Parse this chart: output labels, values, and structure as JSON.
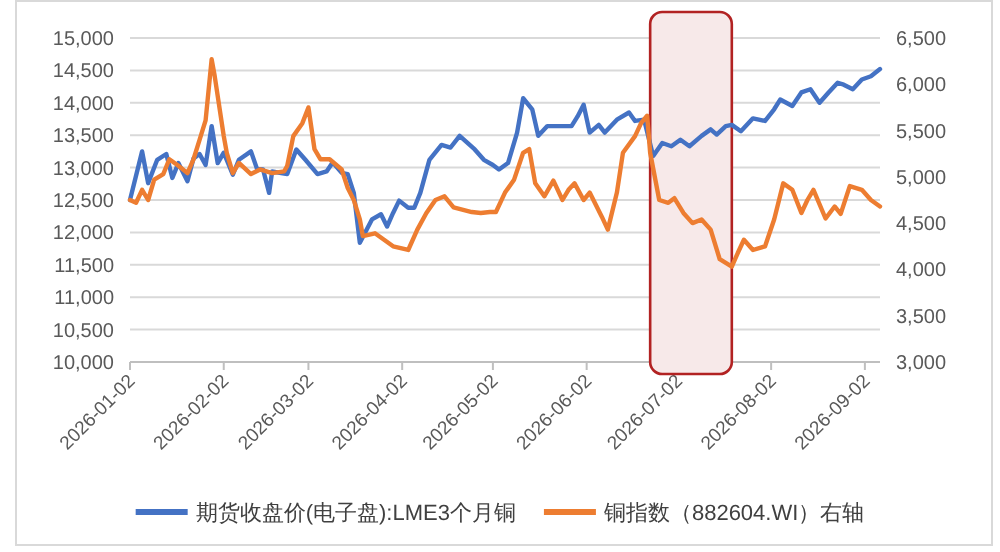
{
  "chart_data": {
    "type": "line",
    "xlim": [
      "2026-01-02",
      "2026-09-07"
    ],
    "xticks": [
      "2026-01-02",
      "2026-02-02",
      "2026-03-02",
      "2026-04-02",
      "2026-05-02",
      "2026-06-02",
      "2026-07-02",
      "2026-08-02",
      "2026-09-02"
    ],
    "ylim": [
      10000,
      15000
    ],
    "yticks": [
      {
        "value": 10000,
        "label": "10,000"
      },
      {
        "value": 10500,
        "label": "10,500"
      },
      {
        "value": 11000,
        "label": "11,000"
      },
      {
        "value": 11500,
        "label": "11,500"
      },
      {
        "value": 12000,
        "label": "12,000"
      },
      {
        "value": 12500,
        "label": "12,500"
      },
      {
        "value": 13000,
        "label": "13,000"
      },
      {
        "value": 13500,
        "label": "13,500"
      },
      {
        "value": 14000,
        "label": "14,000"
      },
      {
        "value": 14500,
        "label": "14,500"
      },
      {
        "value": 15000,
        "label": "15,000"
      }
    ],
    "y2lim": [
      3000,
      6500
    ],
    "y2ticks": [
      {
        "value": 3000,
        "label": "3,000"
      },
      {
        "value": 3500,
        "label": "3,500"
      },
      {
        "value": 4000,
        "label": "4,000"
      },
      {
        "value": 4500,
        "label": "4,500"
      },
      {
        "value": 5000,
        "label": "5,000"
      },
      {
        "value": 5500,
        "label": "5,500"
      },
      {
        "value": 6000,
        "label": "6,000"
      },
      {
        "value": 6500,
        "label": "6,500"
      }
    ],
    "grid": "y",
    "bands": [
      {
        "axis": "x",
        "from": "2026-06-23",
        "to": "2026-07-20",
        "color": "#b22222"
      }
    ],
    "legend": "bottom",
    "series": [
      {
        "name": "期货收盘价(电子盘):LME3个月铜",
        "color": "#4472c4",
        "x": [
          "2026-01-02",
          "2026-01-06",
          "2026-01-08",
          "2026-01-11",
          "2026-01-14",
          "2026-01-16",
          "2026-01-18",
          "2026-01-21",
          "2026-01-23",
          "2026-01-25",
          "2026-01-27",
          "2026-01-29",
          "2026-01-31",
          "2026-02-02",
          "2026-02-05",
          "2026-02-07",
          "2026-02-11",
          "2026-02-13",
          "2026-02-15",
          "2026-02-17",
          "2026-02-18",
          "2026-02-23",
          "2026-02-26",
          "2026-03-01",
          "2026-03-05",
          "2026-03-08",
          "2026-03-10",
          "2026-03-13",
          "2026-03-15",
          "2026-03-17",
          "2026-03-19",
          "2026-03-23",
          "2026-03-26",
          "2026-03-28",
          "2026-03-30",
          "2026-04-01",
          "2026-04-04",
          "2026-04-06",
          "2026-04-08",
          "2026-04-11",
          "2026-04-15",
          "2026-04-18",
          "2026-04-21",
          "2026-04-26",
          "2026-04-29",
          "2026-05-02",
          "2026-05-04",
          "2026-05-07",
          "2026-05-10",
          "2026-05-12",
          "2026-05-15",
          "2026-05-17",
          "2026-05-20",
          "2026-05-23",
          "2026-05-28",
          "2026-05-30",
          "2026-06-01",
          "2026-06-03",
          "2026-06-06",
          "2026-06-08",
          "2026-06-12",
          "2026-06-16",
          "2026-06-18",
          "2026-06-21",
          "2026-06-24",
          "2026-06-27",
          "2026-06-30",
          "2026-07-03",
          "2026-07-06",
          "2026-07-10",
          "2026-07-13",
          "2026-07-15",
          "2026-07-18",
          "2026-07-20",
          "2026-07-23",
          "2026-07-27",
          "2026-07-31",
          "2026-08-03",
          "2026-08-05",
          "2026-08-09",
          "2026-08-12",
          "2026-08-15",
          "2026-08-18",
          "2026-08-21",
          "2026-08-24",
          "2026-08-26",
          "2026-08-29",
          "2026-09-01",
          "2026-09-04",
          "2026-09-07"
        ],
        "values": [
          12500,
          13250,
          12760,
          13120,
          13210,
          12840,
          13070,
          12790,
          13140,
          13210,
          13040,
          13640,
          13070,
          13230,
          12890,
          13120,
          13250,
          12980,
          12970,
          12610,
          12940,
          12900,
          13280,
          13120,
          12900,
          12940,
          13080,
          12920,
          12900,
          12610,
          11840,
          12200,
          12280,
          12090,
          12300,
          12490,
          12380,
          12380,
          12610,
          13120,
          13350,
          13310,
          13490,
          13280,
          13120,
          13040,
          12970,
          13070,
          13540,
          14070,
          13900,
          13490,
          13640,
          13640,
          13640,
          13790,
          13970,
          13540,
          13660,
          13540,
          13740,
          13850,
          13720,
          13740,
          13180,
          13380,
          13330,
          13430,
          13330,
          13490,
          13590,
          13510,
          13640,
          13660,
          13560,
          13760,
          13720,
          13900,
          14050,
          13950,
          14160,
          14210,
          14000,
          14160,
          14310,
          14280,
          14210,
          14360,
          14410,
          14520
        ]
      },
      {
        "name": "铜指数（882604.WI）右轴",
        "color": "#ed7d31",
        "axis": "y2",
        "x": [
          "2026-01-02",
          "2026-01-04",
          "2026-01-06",
          "2026-01-08",
          "2026-01-10",
          "2026-01-13",
          "2026-01-15",
          "2026-01-18",
          "2026-01-21",
          "2026-01-23",
          "2026-01-25",
          "2026-01-27",
          "2026-01-29",
          "2026-01-30",
          "2026-02-02",
          "2026-02-03",
          "2026-02-05",
          "2026-02-07",
          "2026-02-11",
          "2026-02-14",
          "2026-02-18",
          "2026-02-22",
          "2026-02-23",
          "2026-02-25",
          "2026-02-28",
          "2026-03-02",
          "2026-03-04",
          "2026-03-06",
          "2026-03-09",
          "2026-03-13",
          "2026-03-15",
          "2026-03-17",
          "2026-03-19",
          "2026-03-20",
          "2026-03-24",
          "2026-03-27",
          "2026-03-30",
          "2026-04-04",
          "2026-04-07",
          "2026-04-10",
          "2026-04-13",
          "2026-04-16",
          "2026-04-19",
          "2026-04-25",
          "2026-04-28",
          "2026-05-01",
          "2026-05-03",
          "2026-05-06",
          "2026-05-09",
          "2026-05-12",
          "2026-05-14",
          "2026-05-16",
          "2026-05-19",
          "2026-05-22",
          "2026-05-25",
          "2026-05-27",
          "2026-05-29",
          "2026-06-01",
          "2026-06-03",
          "2026-06-07",
          "2026-06-09",
          "2026-06-12",
          "2026-06-14",
          "2026-06-18",
          "2026-06-20",
          "2026-06-22",
          "2026-06-23",
          "2026-06-26",
          "2026-06-29",
          "2026-07-01",
          "2026-07-04",
          "2026-07-07",
          "2026-07-10",
          "2026-07-13",
          "2026-07-16",
          "2026-07-20",
          "2026-07-22",
          "2026-07-24",
          "2026-07-27",
          "2026-07-31",
          "2026-08-03",
          "2026-08-06",
          "2026-08-09",
          "2026-08-12",
          "2026-08-14",
          "2026-08-16",
          "2026-08-20",
          "2026-08-23",
          "2026-08-25",
          "2026-08-28",
          "2026-09-01",
          "2026-09-04",
          "2026-09-07"
        ],
        "values": [
          4750,
          4720,
          4860,
          4750,
          4970,
          5030,
          5190,
          5120,
          5040,
          5190,
          5400,
          5610,
          6270,
          6090,
          5440,
          5260,
          5040,
          5150,
          5030,
          5080,
          5040,
          5060,
          5120,
          5440,
          5580,
          5750,
          5300,
          5190,
          5190,
          5080,
          4880,
          4750,
          4540,
          4360,
          4390,
          4320,
          4250,
          4210,
          4430,
          4610,
          4750,
          4790,
          4670,
          4620,
          4610,
          4620,
          4620,
          4830,
          4970,
          5260,
          5300,
          4930,
          4790,
          4960,
          4750,
          4860,
          4930,
          4750,
          4830,
          4570,
          4430,
          4830,
          5260,
          5440,
          5580,
          5660,
          5260,
          4750,
          4720,
          4770,
          4610,
          4500,
          4540,
          4430,
          4110,
          4030,
          4180,
          4320,
          4210,
          4250,
          4540,
          4930,
          4860,
          4610,
          4750,
          4860,
          4550,
          4680,
          4600,
          4900,
          4860,
          4750,
          4680
        ]
      }
    ]
  }
}
